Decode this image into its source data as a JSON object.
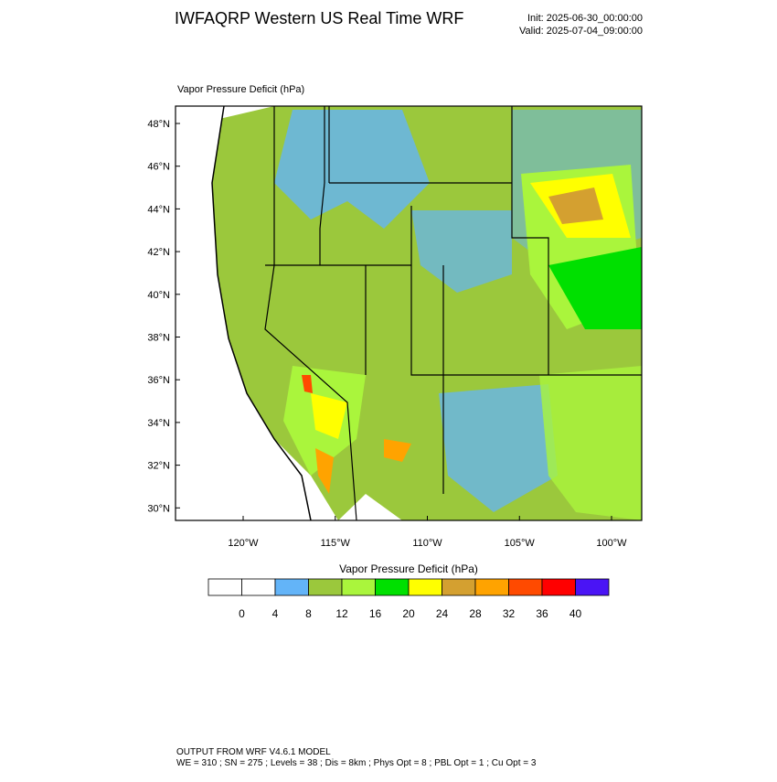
{
  "header": {
    "title": "IWFAQRP Western US Real Time WRF",
    "init": "Init: 2025-06-30_00:00:00",
    "valid": "Valid: 2025-07-04_09:00:00"
  },
  "map": {
    "label": "Vapor Pressure Deficit   (hPa)",
    "lat_labels": [
      "48°N",
      "46°N",
      "44°N",
      "42°N",
      "40°N",
      "38°N",
      "36°N",
      "34°N",
      "32°N",
      "30°N"
    ],
    "lon_labels": [
      "120°W",
      "115°W",
      "110°W",
      "105°W",
      "100°W"
    ]
  },
  "colorbar": {
    "title": "Vapor Pressure Deficit  (hPa)",
    "labels": [
      "0",
      "4",
      "8",
      "12",
      "16",
      "20",
      "24",
      "28",
      "32",
      "36",
      "40"
    ],
    "colors": [
      "#ffffff",
      "#ffffff",
      "#63b4f8",
      "#9bc83c",
      "#aaf53c",
      "#00e000",
      "#ffff00",
      "#d4a030",
      "#ffa300",
      "#ff4a00",
      "#ff0000",
      "#4a14f5"
    ]
  },
  "footer": {
    "line1": "OUTPUT FROM WRF V4.6.1 MODEL",
    "line2": "WE = 310 ; SN = 275 ; Levels = 38 ; Dis = 8km ; Phys Opt = 8 ; PBL Opt = 1 ; Cu Opt = 3"
  }
}
